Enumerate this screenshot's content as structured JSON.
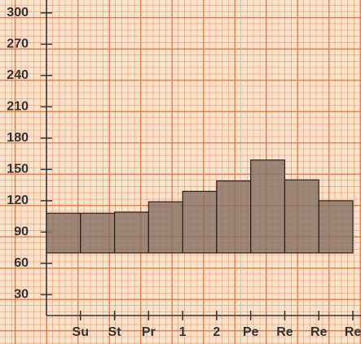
{
  "chart_data": {
    "type": "floating-bar",
    "categories": [
      "Su",
      "St",
      "Pr",
      "1",
      "2",
      "Pe",
      "Re",
      "Re",
      "Re"
    ],
    "low": [
      70,
      70,
      70,
      70,
      70,
      70,
      70,
      70,
      70
    ],
    "high": [
      108,
      108,
      109,
      119,
      129,
      139,
      159,
      140,
      120
    ],
    "color": "#8c7468",
    "ylim": [
      10,
      310
    ],
    "yticks": [
      30,
      60,
      90,
      120,
      150,
      180,
      210,
      240,
      270,
      300
    ]
  }
}
